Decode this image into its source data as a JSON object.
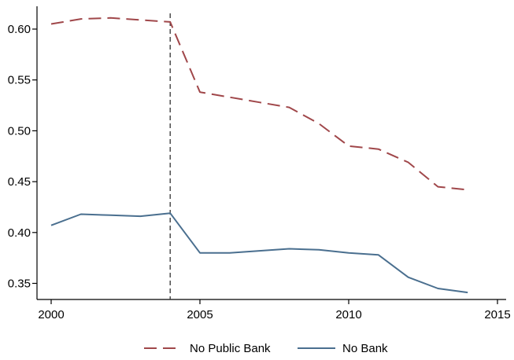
{
  "chart_data": {
    "type": "line",
    "title": "",
    "xlabel": "",
    "ylabel": "",
    "xlim": [
      2000,
      2015
    ],
    "ylim": [
      0.33,
      0.62
    ],
    "xticks": [
      2000,
      2005,
      2010,
      2015
    ],
    "xtick_labels": [
      "2000",
      "2005",
      "2010",
      "2015"
    ],
    "yticks": [
      0.35,
      0.4,
      0.45,
      0.5,
      0.55,
      0.6
    ],
    "ytick_labels": [
      "0.35",
      "0.40",
      "0.45",
      "0.50",
      "0.55",
      "0.60"
    ],
    "grid": false,
    "legend_position": "bottom",
    "reference_line": {
      "axis": "x",
      "value": 2004,
      "style": "dashed",
      "color": "#333333"
    },
    "series": [
      {
        "name": "No Public Bank",
        "color": "#a0474a",
        "style": "dashed",
        "x": [
          2000,
          2001,
          2002,
          2003,
          2004,
          2005,
          2006,
          2007,
          2008,
          2009,
          2010,
          2011,
          2012,
          2013,
          2014
        ],
        "y": [
          0.605,
          0.61,
          0.611,
          0.609,
          0.607,
          0.538,
          0.533,
          0.528,
          0.523,
          0.507,
          0.485,
          0.482,
          0.469,
          0.445,
          0.442
        ]
      },
      {
        "name": "No Bank",
        "color": "#4a6f8f",
        "style": "solid",
        "x": [
          2000,
          2001,
          2002,
          2003,
          2004,
          2005,
          2006,
          2007,
          2008,
          2009,
          2010,
          2011,
          2012,
          2013,
          2014
        ],
        "y": [
          0.407,
          0.418,
          0.417,
          0.416,
          0.419,
          0.38,
          0.38,
          0.382,
          0.384,
          0.383,
          0.38,
          0.378,
          0.356,
          0.345,
          0.341
        ]
      }
    ]
  }
}
